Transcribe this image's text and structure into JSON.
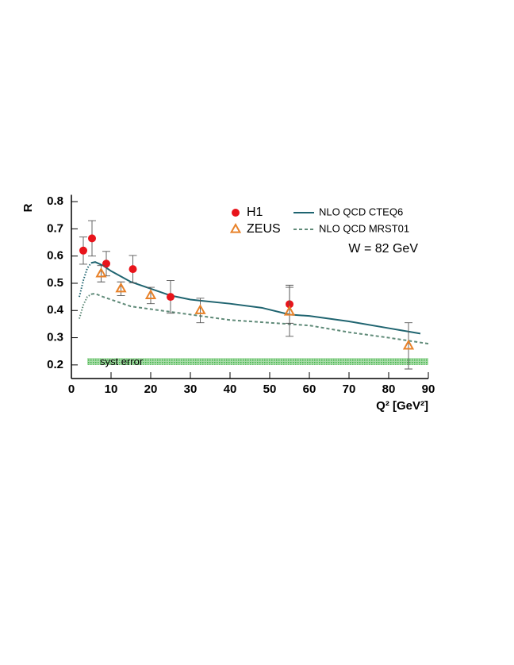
{
  "chart_data": {
    "type": "scatter",
    "xlabel": "Q² [GeV²]",
    "ylabel": "R",
    "annotation": "W = 82 GeV",
    "xlim": [
      0,
      90
    ],
    "ylim": [
      0.15,
      0.825
    ],
    "xticks": [
      0,
      10,
      20,
      30,
      40,
      50,
      60,
      70,
      80,
      90
    ],
    "yticks": [
      0.2,
      0.3,
      0.4,
      0.5,
      0.6,
      0.7,
      0.8
    ],
    "series": [
      {
        "name": "H1",
        "color": "#e8141b",
        "marker": "circle",
        "x": [
          3,
          5.2,
          8.8,
          15.5,
          25,
          55
        ],
        "values": [
          0.62,
          0.665,
          0.572,
          0.552,
          0.45,
          0.423
        ],
        "errors": [
          0.05,
          0.065,
          0.045,
          0.05,
          0.06,
          0.07
        ]
      },
      {
        "name": "ZEUS",
        "color": "#e8822a",
        "marker": "triangle",
        "x": [
          7.5,
          12.5,
          20,
          32.5,
          55,
          85
        ],
        "values": [
          0.535,
          0.48,
          0.455,
          0.4,
          0.395,
          0.27
        ],
        "errors": [
          0.03,
          0.025,
          0.03,
          0.045,
          0.09,
          0.085
        ]
      }
    ],
    "curves": [
      {
        "name": "NLO QCD CTEQ6",
        "color": "#1f6470",
        "style": "solid",
        "x": [
          5,
          6,
          8,
          10,
          15,
          20,
          25,
          30,
          40,
          48,
          55,
          60,
          70,
          80,
          88
        ],
        "values": [
          0.575,
          0.578,
          0.565,
          0.545,
          0.505,
          0.48,
          0.455,
          0.44,
          0.425,
          0.41,
          0.385,
          0.38,
          0.36,
          0.335,
          0.315
        ],
        "dotted_start": {
          "x": [
            2,
            3,
            4,
            5
          ],
          "values": [
            0.45,
            0.51,
            0.555,
            0.575
          ]
        }
      },
      {
        "name": "NLO QCD MRST01",
        "color": "#5f8a78",
        "style": "dashed",
        "x": [
          5,
          6,
          8,
          10,
          15,
          20,
          30,
          40,
          50,
          60,
          70,
          80,
          90
        ],
        "values": [
          0.46,
          0.462,
          0.45,
          0.44,
          0.415,
          0.405,
          0.385,
          0.365,
          0.355,
          0.345,
          0.32,
          0.3,
          0.278
        ],
        "dotted_start": {
          "x": [
            2,
            3,
            4,
            5
          ],
          "values": [
            0.37,
            0.42,
            0.45,
            0.46
          ]
        }
      }
    ],
    "syst_band": {
      "label": "syst error",
      "color": "#3cb043",
      "xlim": [
        4,
        90
      ],
      "ylim": [
        0.2,
        0.225
      ]
    }
  }
}
